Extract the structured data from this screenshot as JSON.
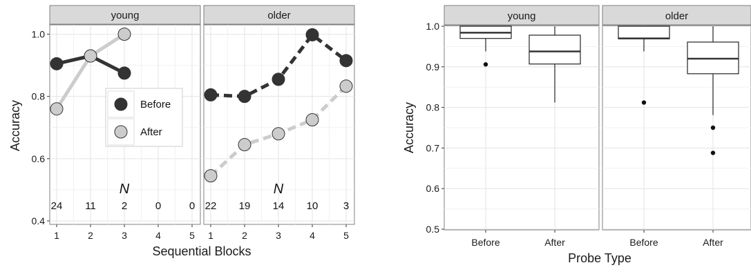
{
  "chart_data": [
    {
      "type": "line",
      "xlabel": "Sequential Blocks",
      "ylabel": "Accuracy",
      "ylim": [
        0.4,
        1.0
      ],
      "y_ticks": [
        "0.4",
        "0.6",
        "0.8",
        "1.0"
      ],
      "x_ticks": [
        "1",
        "2",
        "3",
        "4",
        "5"
      ],
      "grid": true,
      "legend": {
        "placement": "inside young panel, middle",
        "entries": [
          {
            "label": "Before",
            "color": "#333333"
          },
          {
            "label": "After",
            "color": "#cccccc"
          }
        ]
      },
      "n_heading": "N",
      "panels": [
        {
          "strip": "young",
          "line_style": "solid",
          "series": [
            {
              "name": "Before",
              "x": [
                1,
                2,
                3
              ],
              "y": [
                0.905,
                0.93,
                0.875
              ]
            },
            {
              "name": "After",
              "x": [
                1,
                2,
                3
              ],
              "y": [
                0.76,
                0.93,
                1.0
              ]
            }
          ],
          "n_counts": [
            "24",
            "11",
            "2",
            "0",
            "0"
          ]
        },
        {
          "strip": "older",
          "line_style": "dashed",
          "series": [
            {
              "name": "Before",
              "x": [
                1,
                2,
                3,
                4,
                5
              ],
              "y": [
                0.805,
                0.8,
                0.855,
                0.998,
                0.915
              ]
            },
            {
              "name": "After",
              "x": [
                1,
                2,
                3,
                4,
                5
              ],
              "y": [
                0.545,
                0.645,
                0.68,
                0.725,
                0.833
              ]
            }
          ],
          "n_counts": [
            "22",
            "19",
            "14",
            "10",
            "3"
          ]
        }
      ]
    },
    {
      "type": "boxplot",
      "xlabel": "Probe Type",
      "ylabel": "Accuracy",
      "ylim": [
        0.5,
        1.0
      ],
      "y_ticks": [
        "0.5",
        "0.6",
        "0.7",
        "0.8",
        "0.9",
        "1.0"
      ],
      "categories": [
        "Before",
        "After"
      ],
      "grid": true,
      "panels": [
        {
          "strip": "young",
          "boxes": [
            {
              "category": "Before",
              "whisker_low": 0.938,
              "q1": 0.97,
              "median": 0.984,
              "q3": 1.0,
              "whisker_high": 1.0,
              "outliers": [
                0.906
              ]
            },
            {
              "category": "After",
              "whisker_low": 0.812,
              "q1": 0.907,
              "median": 0.938,
              "q3": 0.978,
              "whisker_high": 1.0,
              "outliers": []
            }
          ]
        },
        {
          "strip": "older",
          "boxes": [
            {
              "category": "Before",
              "whisker_low": 0.938,
              "q1": 0.969,
              "median": 0.97,
              "q3": 1.0,
              "whisker_high": 1.0,
              "outliers": [
                0.812
              ]
            },
            {
              "category": "After",
              "whisker_low": 0.781,
              "q1": 0.883,
              "median": 0.92,
              "q3": 0.961,
              "whisker_high": 1.0,
              "outliers": [
                0.75,
                0.688
              ]
            }
          ]
        }
      ]
    }
  ]
}
